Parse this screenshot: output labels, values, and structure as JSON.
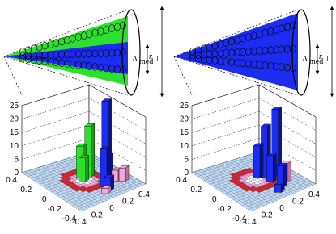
{
  "panels": [
    {
      "lambda": "Λ",
      "lambda_sub": "med",
      "r": "r",
      "r_sub": "⊥",
      "z_ticks": [
        "0",
        "5",
        "10",
        "15",
        "20",
        "25"
      ],
      "x_ticks": [
        "0.4",
        "0.2",
        "0",
        "-0.2",
        "-0.4"
      ],
      "y_ticks": [
        "-0.4",
        "-0.2",
        "0",
        "0.2",
        "0.4"
      ]
    },
    {
      "lambda": "Λ",
      "lambda_sub": "med",
      "r": "r",
      "r_sub": "⊥",
      "z_ticks": [
        "0",
        "5",
        "10",
        "15",
        "20",
        "25"
      ],
      "x_ticks": [
        "0.4",
        "0.2",
        "0",
        "-0.2",
        "-0.4"
      ],
      "y_ticks": [
        "-0.4",
        "-0.2",
        "0",
        "0.2",
        "0.4"
      ]
    }
  ]
}
